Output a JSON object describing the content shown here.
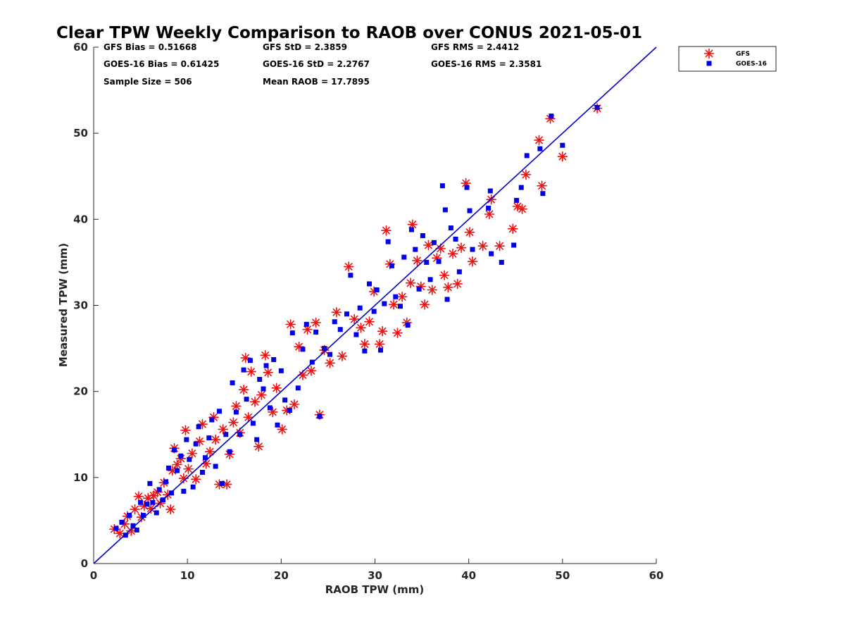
{
  "chart_data": {
    "type": "scatter",
    "title": "Clear TPW Weekly Comparison to RAOB over CONUS 2021-05-01",
    "xlabel": "RAOB TPW (mm)",
    "ylabel": "Measured TPW (mm)",
    "xlim": [
      0,
      60
    ],
    "ylim": [
      0,
      60
    ],
    "xticks": [
      "0",
      "10",
      "20",
      "30",
      "40",
      "50",
      "60"
    ],
    "yticks": [
      "0",
      "10",
      "20",
      "30",
      "40",
      "50",
      "60"
    ],
    "grid": false,
    "legend_position": "top-right-outside",
    "reference_line": {
      "type": "y=x",
      "color": "#0000cc"
    },
    "stats": [
      [
        "GFS Bias = 0.51668",
        "GFS StD = 2.3859",
        "GFS RMS = 2.4412"
      ],
      [
        "GOES-16 Bias = 0.61425",
        "GOES-16 StD = 2.2767",
        "GOES-16 RMS = 2.3581"
      ],
      [
        "Sample Size = 506",
        "Mean RAOB = 17.7895",
        ""
      ]
    ],
    "series": [
      {
        "name": "GFS",
        "marker": "asterisk",
        "color": "#ee1111",
        "points": [
          [
            2.2,
            4.0
          ],
          [
            2.8,
            3.5
          ],
          [
            3.3,
            4.6
          ],
          [
            3.6,
            5.5
          ],
          [
            4.0,
            3.8
          ],
          [
            4.4,
            6.3
          ],
          [
            4.8,
            7.8
          ],
          [
            5.1,
            5.4
          ],
          [
            5.4,
            6.7
          ],
          [
            5.8,
            7.6
          ],
          [
            6.1,
            6.4
          ],
          [
            6.4,
            7.9
          ],
          [
            6.8,
            8.3
          ],
          [
            7.1,
            7.0
          ],
          [
            7.5,
            9.4
          ],
          [
            7.9,
            8.0
          ],
          [
            8.2,
            6.3
          ],
          [
            8.4,
            10.8
          ],
          [
            8.6,
            13.4
          ],
          [
            8.9,
            11.5
          ],
          [
            9.3,
            12.2
          ],
          [
            9.6,
            9.9
          ],
          [
            9.8,
            15.5
          ],
          [
            10.1,
            11.0
          ],
          [
            10.5,
            12.8
          ],
          [
            10.9,
            9.8
          ],
          [
            11.3,
            14.2
          ],
          [
            11.6,
            16.2
          ],
          [
            12.0,
            11.6
          ],
          [
            12.4,
            13.0
          ],
          [
            12.8,
            17.0
          ],
          [
            13.0,
            14.4
          ],
          [
            13.4,
            9.2
          ],
          [
            13.8,
            15.6
          ],
          [
            14.2,
            9.2
          ],
          [
            14.5,
            12.7
          ],
          [
            14.9,
            16.4
          ],
          [
            15.2,
            18.3
          ],
          [
            15.6,
            15.2
          ],
          [
            16.0,
            20.2
          ],
          [
            16.2,
            23.9
          ],
          [
            16.5,
            17.0
          ],
          [
            16.8,
            22.3
          ],
          [
            17.2,
            18.8
          ],
          [
            17.6,
            13.6
          ],
          [
            17.9,
            19.6
          ],
          [
            18.3,
            24.2
          ],
          [
            18.6,
            22.2
          ],
          [
            19.1,
            17.6
          ],
          [
            19.5,
            20.4
          ],
          [
            20.1,
            15.6
          ],
          [
            20.6,
            17.8
          ],
          [
            21.0,
            27.8
          ],
          [
            21.4,
            18.5
          ],
          [
            21.9,
            25.2
          ],
          [
            22.3,
            21.9
          ],
          [
            22.8,
            27.2
          ],
          [
            23.2,
            22.4
          ],
          [
            23.7,
            28.0
          ],
          [
            24.1,
            17.3
          ],
          [
            24.6,
            24.8
          ],
          [
            25.2,
            23.3
          ],
          [
            25.9,
            29.2
          ],
          [
            26.5,
            24.1
          ],
          [
            27.2,
            34.5
          ],
          [
            27.8,
            28.4
          ],
          [
            28.5,
            27.4
          ],
          [
            28.9,
            25.5
          ],
          [
            29.4,
            28.1
          ],
          [
            29.9,
            31.6
          ],
          [
            30.5,
            25.5
          ],
          [
            30.8,
            27.0
          ],
          [
            31.2,
            38.7
          ],
          [
            31.6,
            34.8
          ],
          [
            32.0,
            30.1
          ],
          [
            32.4,
            26.8
          ],
          [
            32.9,
            31.0
          ],
          [
            33.4,
            28.0
          ],
          [
            33.8,
            32.6
          ],
          [
            34.0,
            39.4
          ],
          [
            34.5,
            35.2
          ],
          [
            34.9,
            32.2
          ],
          [
            35.3,
            30.1
          ],
          [
            35.7,
            37.0
          ],
          [
            36.1,
            31.8
          ],
          [
            36.6,
            35.5
          ],
          [
            37.0,
            36.6
          ],
          [
            37.4,
            33.5
          ],
          [
            37.8,
            32.1
          ],
          [
            38.3,
            36.0
          ],
          [
            38.8,
            32.5
          ],
          [
            39.2,
            36.7
          ],
          [
            39.7,
            44.2
          ],
          [
            40.1,
            38.5
          ],
          [
            40.4,
            35.1
          ],
          [
            41.5,
            36.9
          ],
          [
            42.2,
            40.6
          ],
          [
            42.4,
            42.3
          ],
          [
            43.3,
            36.9
          ],
          [
            44.7,
            38.9
          ],
          [
            45.2,
            41.5
          ],
          [
            45.7,
            41.2
          ],
          [
            46.1,
            45.2
          ],
          [
            47.5,
            49.2
          ],
          [
            47.8,
            43.9
          ],
          [
            48.7,
            51.7
          ],
          [
            50.0,
            47.3
          ],
          [
            53.7,
            52.9
          ]
        ]
      },
      {
        "name": "GOES-16",
        "marker": "square",
        "color": "#0000ee",
        "points": [
          [
            2.4,
            4.1
          ],
          [
            3.0,
            4.8
          ],
          [
            3.4,
            3.3
          ],
          [
            3.8,
            5.6
          ],
          [
            4.2,
            4.4
          ],
          [
            4.6,
            3.9
          ],
          [
            5.0,
            7.1
          ],
          [
            5.3,
            5.6
          ],
          [
            5.7,
            6.9
          ],
          [
            6.0,
            9.3
          ],
          [
            6.3,
            7.1
          ],
          [
            6.7,
            5.9
          ],
          [
            7.0,
            8.6
          ],
          [
            7.4,
            7.4
          ],
          [
            7.7,
            9.5
          ],
          [
            8.0,
            11.1
          ],
          [
            8.3,
            8.2
          ],
          [
            8.6,
            13.2
          ],
          [
            8.9,
            10.8
          ],
          [
            9.3,
            12.5
          ],
          [
            9.6,
            8.4
          ],
          [
            9.9,
            14.4
          ],
          [
            10.2,
            12.1
          ],
          [
            10.6,
            8.9
          ],
          [
            10.9,
            13.9
          ],
          [
            11.2,
            15.9
          ],
          [
            11.6,
            10.6
          ],
          [
            11.9,
            12.3
          ],
          [
            12.3,
            14.6
          ],
          [
            12.6,
            16.7
          ],
          [
            13.0,
            11.3
          ],
          [
            13.4,
            17.7
          ],
          [
            13.7,
            9.3
          ],
          [
            14.1,
            15.0
          ],
          [
            14.5,
            13.0
          ],
          [
            14.8,
            21.0
          ],
          [
            15.2,
            17.6
          ],
          [
            15.6,
            15.0
          ],
          [
            16.0,
            22.5
          ],
          [
            16.3,
            19.1
          ],
          [
            16.7,
            23.6
          ],
          [
            17.0,
            16.3
          ],
          [
            17.4,
            14.4
          ],
          [
            17.7,
            21.4
          ],
          [
            18.1,
            20.3
          ],
          [
            18.4,
            23.0
          ],
          [
            18.8,
            18.1
          ],
          [
            19.2,
            23.7
          ],
          [
            19.6,
            16.1
          ],
          [
            20.0,
            22.4
          ],
          [
            20.4,
            19.0
          ],
          [
            20.9,
            17.8
          ],
          [
            21.2,
            26.8
          ],
          [
            21.8,
            20.4
          ],
          [
            22.3,
            24.9
          ],
          [
            22.7,
            27.8
          ],
          [
            23.3,
            23.4
          ],
          [
            23.7,
            26.9
          ],
          [
            24.1,
            17.1
          ],
          [
            24.6,
            25.0
          ],
          [
            25.2,
            24.3
          ],
          [
            25.7,
            28.1
          ],
          [
            26.3,
            27.2
          ],
          [
            27.0,
            29.0
          ],
          [
            27.4,
            33.5
          ],
          [
            28.0,
            26.6
          ],
          [
            28.4,
            29.7
          ],
          [
            28.9,
            24.7
          ],
          [
            29.4,
            32.5
          ],
          [
            29.9,
            29.3
          ],
          [
            30.2,
            31.8
          ],
          [
            30.6,
            24.8
          ],
          [
            31.0,
            30.2
          ],
          [
            31.4,
            37.4
          ],
          [
            31.8,
            34.6
          ],
          [
            32.2,
            31.0
          ],
          [
            32.7,
            29.9
          ],
          [
            33.1,
            35.6
          ],
          [
            33.5,
            27.7
          ],
          [
            33.9,
            38.8
          ],
          [
            34.3,
            36.5
          ],
          [
            34.7,
            31.9
          ],
          [
            35.1,
            38.1
          ],
          [
            35.5,
            35.0
          ],
          [
            35.9,
            33.0
          ],
          [
            36.3,
            37.3
          ],
          [
            36.8,
            35.1
          ],
          [
            37.2,
            43.9
          ],
          [
            37.5,
            41.1
          ],
          [
            37.7,
            30.7
          ],
          [
            38.1,
            39.0
          ],
          [
            38.6,
            37.7
          ],
          [
            39.0,
            33.9
          ],
          [
            39.8,
            43.7
          ],
          [
            40.1,
            41.0
          ],
          [
            40.4,
            36.5
          ],
          [
            42.1,
            41.3
          ],
          [
            42.3,
            43.3
          ],
          [
            42.4,
            36.0
          ],
          [
            43.5,
            35.0
          ],
          [
            44.8,
            37.0
          ],
          [
            45.1,
            42.2
          ],
          [
            45.6,
            43.7
          ],
          [
            46.2,
            47.4
          ],
          [
            47.6,
            48.2
          ],
          [
            47.9,
            43.0
          ],
          [
            48.8,
            52.0
          ],
          [
            50.0,
            48.6
          ],
          [
            53.7,
            53.0
          ]
        ]
      }
    ]
  }
}
